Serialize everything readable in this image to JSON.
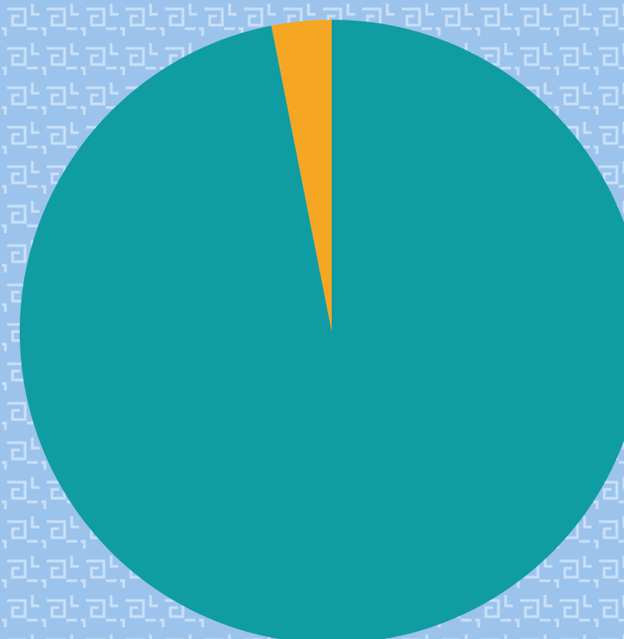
{
  "background": {
    "color": "#9cc3ec",
    "pattern_color": "#c9e0f7"
  },
  "chart_data": {
    "type": "pie",
    "title": "",
    "legend": "none",
    "start_angle": "12 o'clock",
    "direction": "clockwise",
    "slices": [
      {
        "value": 96.9,
        "color": "#0f9ca2"
      },
      {
        "value": 3.1,
        "color": "#f5a623"
      }
    ]
  }
}
